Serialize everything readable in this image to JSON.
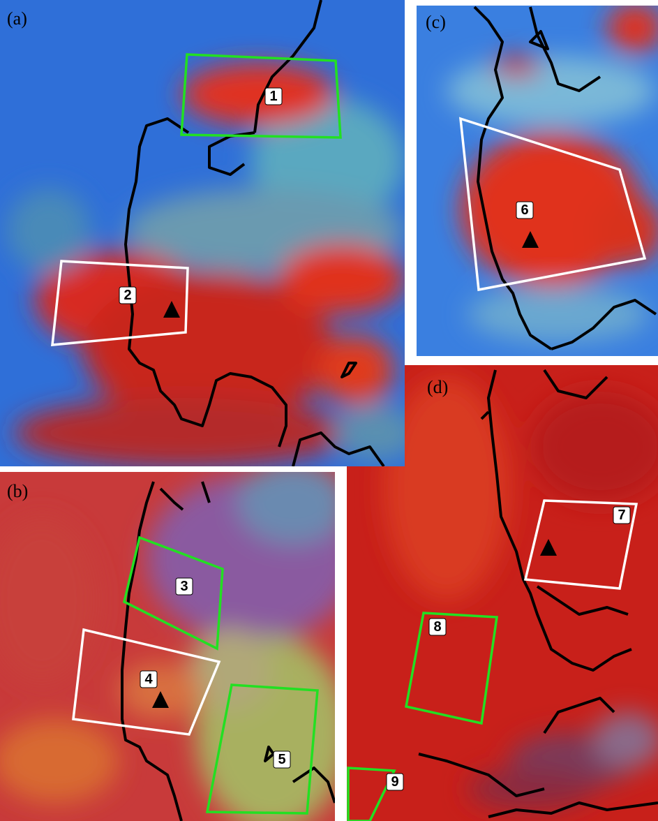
{
  "panels": [
    {
      "label": "(a)",
      "regions": [
        {
          "label": "1"
        },
        {
          "label": "2"
        }
      ]
    },
    {
      "label": "(b)",
      "regions": [
        {
          "label": "3"
        },
        {
          "label": "4"
        },
        {
          "label": "5"
        }
      ]
    },
    {
      "label": "(c)",
      "regions": [
        {
          "label": "6"
        }
      ]
    },
    {
      "label": "(d)",
      "regions": [
        {
          "label": "7"
        },
        {
          "label": "8"
        },
        {
          "label": "9"
        }
      ]
    }
  ]
}
